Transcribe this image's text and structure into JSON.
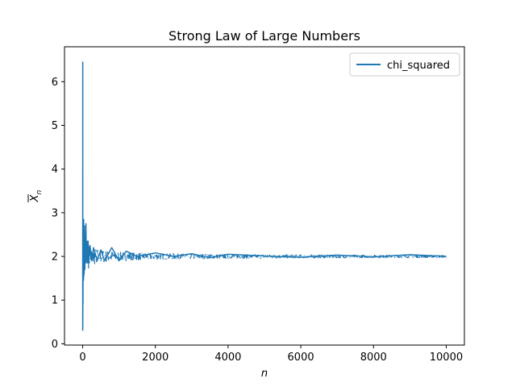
{
  "chart_data": {
    "type": "line",
    "title": "Strong Law of Large Numbers",
    "xlabel": "n",
    "ylabel_base": "X",
    "ylabel_subscript": "n",
    "xlim": [
      -500,
      10500
    ],
    "ylim": [
      -0.03,
      6.8
    ],
    "xticks": [
      0,
      2000,
      4000,
      6000,
      8000,
      10000
    ],
    "xtick_labels": [
      "0",
      "2000",
      "4000",
      "6000",
      "8000",
      "10000"
    ],
    "yticks": [
      0,
      1,
      2,
      3,
      4,
      5,
      6
    ],
    "ytick_labels": [
      "0",
      "1",
      "2",
      "3",
      "4",
      "5",
      "6"
    ],
    "grid": false,
    "legend_position": "top-right",
    "series": [
      {
        "name": "chi_squared",
        "color": "#1f77b4",
        "x": [
          1,
          2,
          3,
          4,
          5,
          6,
          8,
          10,
          12,
          15,
          18,
          22,
          26,
          30,
          35,
          40,
          50,
          60,
          70,
          80,
          90,
          100,
          110,
          120,
          130,
          140,
          150,
          170,
          200,
          250,
          300,
          400,
          500,
          600,
          800,
          1000,
          1200,
          1500,
          2000,
          2500,
          3000,
          3500,
          4000,
          5000,
          6000,
          7000,
          8000,
          9000,
          10000
        ],
        "values": [
          0.3,
          6.45,
          0.35,
          0.6,
          2.4,
          1.3,
          0.9,
          1.6,
          2.6,
          1.5,
          2.3,
          1.45,
          2.85,
          1.55,
          2.45,
          1.6,
          2.7,
          1.7,
          2.4,
          1.85,
          2.75,
          1.9,
          2.3,
          1.85,
          2.35,
          1.85,
          2.35,
          1.85,
          2.25,
          1.9,
          2.2,
          1.9,
          2.15,
          1.9,
          2.2,
          1.9,
          2.12,
          2.0,
          2.08,
          2.0,
          2.06,
          1.97,
          2.05,
          2.01,
          1.98,
          2.03,
          1.99,
          2.04,
          2.0
        ]
      }
    ]
  }
}
